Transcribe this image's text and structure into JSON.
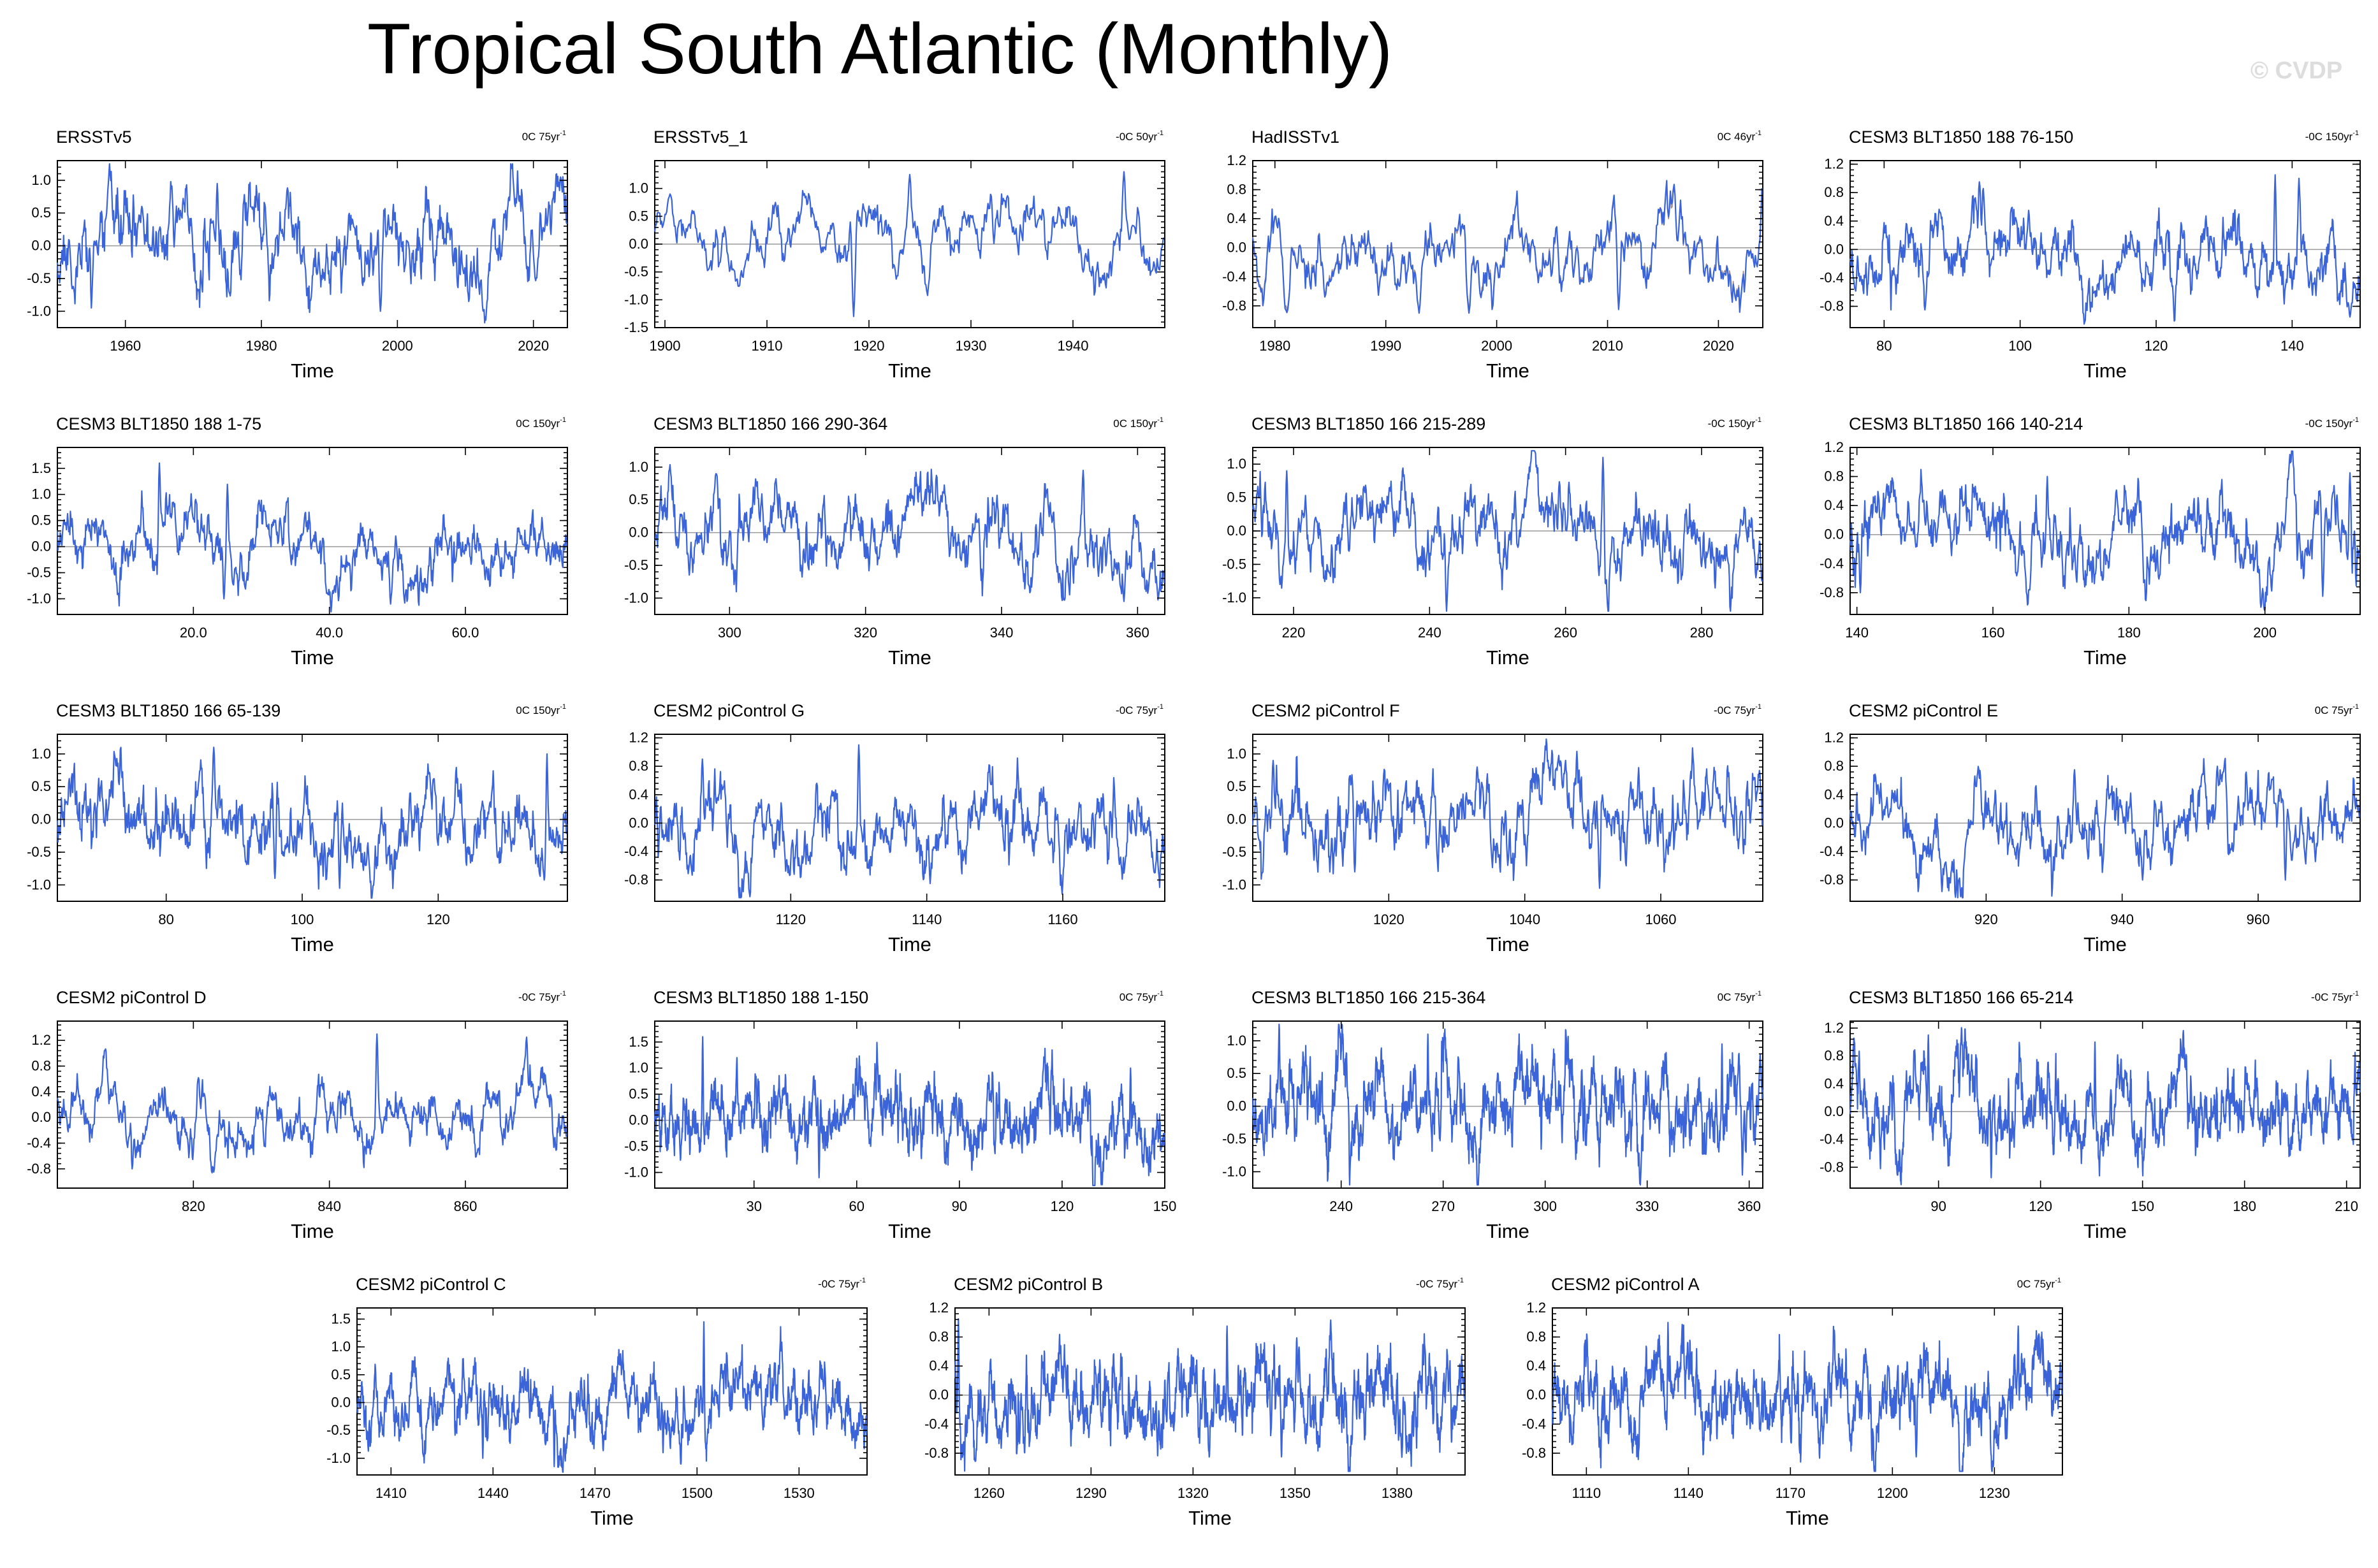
{
  "title": "Tropical South Atlantic (Monthly)",
  "watermark": "© CVDP",
  "chart_data": [
    {
      "type": "line",
      "name": "ERSSTv5",
      "trend": "0C 75yr",
      "trend_exp": "-1",
      "xlabel": "Time",
      "xlim": [
        1950,
        2025
      ],
      "xticks": [
        1960,
        1980,
        2000,
        2020
      ],
      "xtick_labels": [
        "1960",
        "1980",
        "2000",
        "2020"
      ],
      "ylim": [
        -1.25,
        1.3
      ],
      "yticks": [
        -1.0,
        -0.5,
        0.0,
        0.5,
        1.0
      ],
      "ytick_labels": [
        "-1.0",
        "-0.5",
        "0.0",
        "0.5",
        "1.0"
      ],
      "seed": 11,
      "amp": 0.45,
      "extremes": [
        [
          1973.5,
          0.95
        ],
        [
          1997.5,
          -1.0
        ],
        [
          2024,
          1.05
        ],
        [
          1955,
          -0.95
        ],
        [
          2010.5,
          -0.85
        ]
      ]
    },
    {
      "type": "line",
      "name": "ERSSTv5_1",
      "trend": "-0C 50yr",
      "trend_exp": "-1",
      "xlabel": "Time",
      "xlim": [
        1899,
        1949
      ],
      "xticks": [
        1900,
        1910,
        1920,
        1930,
        1940
      ],
      "xtick_labels": [
        "1900",
        "1910",
        "1920",
        "1930",
        "1940"
      ],
      "ylim": [
        -1.5,
        1.5
      ],
      "yticks": [
        -1.5,
        -1.0,
        -0.5,
        0.0,
        0.5,
        1.0
      ],
      "ytick_labels": [
        "-1.5",
        "-1.0",
        "-0.5",
        "0.0",
        "0.5",
        "1.0"
      ],
      "seed": 23,
      "amp": 0.42,
      "extremes": [
        [
          1918.5,
          -1.3
        ],
        [
          1924,
          1.25
        ],
        [
          1945,
          1.3
        ],
        [
          1900.5,
          0.9
        ]
      ]
    },
    {
      "type": "line",
      "name": "HadISSTv1",
      "trend": "0C 46yr",
      "trend_exp": "-1",
      "xlabel": "Time",
      "xlim": [
        1978,
        2024
      ],
      "xticks": [
        1980,
        1990,
        2000,
        2010,
        2020
      ],
      "xtick_labels": [
        "1980",
        "1990",
        "2000",
        "2010",
        "2020"
      ],
      "ylim": [
        -1.1,
        1.2
      ],
      "yticks": [
        -0.8,
        -0.4,
        0.0,
        0.4,
        0.8,
        1.2
      ],
      "ytick_labels": [
        "-0.8",
        "-0.4",
        "0.0",
        "0.4",
        "0.8",
        "1.2"
      ],
      "seed": 37,
      "amp": 0.34,
      "overlay": true,
      "extremes": [
        [
          1993,
          -0.9
        ],
        [
          1997.5,
          -0.9
        ],
        [
          2011,
          -0.85
        ],
        [
          2024,
          1.05
        ]
      ]
    },
    {
      "type": "line",
      "name": "CESM3 BLT1850 188 76-150",
      "trend": "-0C 150yr",
      "trend_exp": "-1",
      "xlabel": "Time",
      "xlim": [
        75,
        150
      ],
      "xticks": [
        80,
        100,
        120,
        140
      ],
      "xtick_labels": [
        "80",
        "100",
        "120",
        "140"
      ],
      "ylim": [
        -1.1,
        1.25
      ],
      "yticks": [
        -0.8,
        -0.4,
        0.0,
        0.4,
        0.8,
        1.2
      ],
      "ytick_labels": [
        "-0.8",
        "-0.4",
        "0.0",
        "0.4",
        "0.8",
        "1.2"
      ],
      "seed": 41,
      "amp": 0.36,
      "extremes": [
        [
          137.5,
          1.05
        ],
        [
          141,
          1.0
        ],
        [
          148.5,
          -0.95
        ],
        [
          86,
          -0.85
        ]
      ]
    },
    {
      "type": "line",
      "name": "CESM3 BLT1850 188 1-75",
      "trend": "0C 150yr",
      "trend_exp": "-1",
      "xlabel": "Time",
      "xlim": [
        0,
        75
      ],
      "xticks": [
        20,
        40,
        60
      ],
      "xtick_labels": [
        "20.0",
        "40.0",
        "60.0"
      ],
      "ylim": [
        -1.3,
        1.9
      ],
      "yticks": [
        -1.0,
        -0.5,
        0.0,
        0.5,
        1.0,
        1.5
      ],
      "ytick_labels": [
        "-1.0",
        "-0.5",
        "0.0",
        "0.5",
        "1.0",
        "1.5"
      ],
      "seed": 53,
      "amp": 0.42,
      "extremes": [
        [
          15,
          1.6
        ],
        [
          25,
          1.2
        ],
        [
          49,
          -1.1
        ],
        [
          24.5,
          -1.0
        ]
      ]
    },
    {
      "type": "line",
      "name": "CESM3 BLT1850 166 290-364",
      "trend": "0C 150yr",
      "trend_exp": "-1",
      "xlabel": "Time",
      "xlim": [
        289,
        364
      ],
      "xticks": [
        300,
        320,
        340,
        360
      ],
      "xtick_labels": [
        "300",
        "320",
        "340",
        "360"
      ],
      "ylim": [
        -1.25,
        1.3
      ],
      "yticks": [
        -1.0,
        -0.5,
        0.0,
        0.5,
        1.0
      ],
      "ytick_labels": [
        "-1.0",
        "-0.5",
        "0.0",
        "0.5",
        "1.0"
      ],
      "seed": 67,
      "amp": 0.42,
      "extremes": [
        [
          358,
          -1.05
        ],
        [
          350,
          -0.95
        ],
        [
          352,
          0.95
        ],
        [
          298,
          0.9
        ]
      ]
    },
    {
      "type": "line",
      "name": "CESM3 BLT1850 166 215-289",
      "trend": "-0C 150yr",
      "trend_exp": "-1",
      "xlabel": "Time",
      "xlim": [
        214,
        289
      ],
      "xticks": [
        220,
        240,
        260,
        280
      ],
      "xtick_labels": [
        "220",
        "240",
        "260",
        "280"
      ],
      "ylim": [
        -1.25,
        1.25
      ],
      "yticks": [
        -1.0,
        -0.5,
        0.0,
        0.5,
        1.0
      ],
      "ytick_labels": [
        "-1.0",
        "-0.5",
        "0.0",
        "0.5",
        "1.0"
      ],
      "seed": 79,
      "amp": 0.4,
      "extremes": [
        [
          265.5,
          1.1
        ],
        [
          242.5,
          -1.2
        ],
        [
          219,
          0.9
        ],
        [
          288,
          -0.7
        ]
      ]
    },
    {
      "type": "line",
      "name": "CESM3 BLT1850 166 140-214",
      "trend": "-0C 150yr",
      "trend_exp": "-1",
      "xlabel": "Time",
      "xlim": [
        139,
        214
      ],
      "xticks": [
        140,
        160,
        180,
        200
      ],
      "xtick_labels": [
        "140",
        "160",
        "180",
        "200"
      ],
      "ylim": [
        -1.1,
        1.2
      ],
      "yticks": [
        -0.8,
        -0.4,
        0.0,
        0.4,
        0.8,
        1.2
      ],
      "ytick_labels": [
        "-0.8",
        "-0.4",
        "0.0",
        "0.4",
        "0.8",
        "1.2"
      ],
      "seed": 83,
      "amp": 0.38,
      "extremes": [
        [
          212.5,
          0.85
        ],
        [
          140.5,
          -0.8
        ],
        [
          168,
          0.8
        ],
        [
          208.5,
          -0.85
        ]
      ]
    },
    {
      "type": "line",
      "name": "CESM3 BLT1850 166 65-139",
      "trend": "0C 150yr",
      "trend_exp": "-1",
      "xlabel": "Time",
      "xlim": [
        64,
        139
      ],
      "xticks": [
        80,
        100,
        120
      ],
      "xtick_labels": [
        "80",
        "100",
        "120"
      ],
      "ylim": [
        -1.25,
        1.3
      ],
      "yticks": [
        -1.0,
        -0.5,
        0.0,
        0.5,
        1.0
      ],
      "ytick_labels": [
        "-1.0",
        "-0.5",
        "0.0",
        "0.5",
        "1.0"
      ],
      "seed": 97,
      "amp": 0.4,
      "extremes": [
        [
          87,
          1.1
        ],
        [
          105.5,
          -1.05
        ],
        [
          136,
          1.0
        ],
        [
          96,
          -0.9
        ]
      ]
    },
    {
      "type": "line",
      "name": "CESM2 piControl G",
      "trend": "-0C 75yr",
      "trend_exp": "-1",
      "xlabel": "Time",
      "xlim": [
        1100,
        1175
      ],
      "xticks": [
        1120,
        1140,
        1160
      ],
      "xtick_labels": [
        "1120",
        "1140",
        "1160"
      ],
      "ylim": [
        -1.1,
        1.25
      ],
      "yticks": [
        -0.8,
        -0.4,
        0.0,
        0.4,
        0.8,
        1.2
      ],
      "ytick_labels": [
        "-0.8",
        "-0.4",
        "0.0",
        "0.4",
        "0.8",
        "1.2"
      ],
      "seed": 101,
      "amp": 0.36,
      "extremes": [
        [
          1130,
          1.1
        ],
        [
          1140.5,
          -0.85
        ],
        [
          1107,
          0.9
        ],
        [
          1173.5,
          -0.7
        ]
      ]
    },
    {
      "type": "line",
      "name": "CESM2 piControl F",
      "trend": "-0C 75yr",
      "trend_exp": "-1",
      "xlabel": "Time",
      "xlim": [
        1000,
        1075
      ],
      "xticks": [
        1020,
        1040,
        1060
      ],
      "xtick_labels": [
        "1020",
        "1040",
        "1060"
      ],
      "ylim": [
        -1.25,
        1.3
      ],
      "yticks": [
        -1.0,
        -0.5,
        0.0,
        0.5,
        1.0
      ],
      "ytick_labels": [
        "-1.0",
        "-0.5",
        "0.0",
        "0.5",
        "1.0"
      ],
      "seed": 113,
      "amp": 0.4,
      "extremes": [
        [
          1051,
          -1.05
        ],
        [
          1003,
          0.9
        ],
        [
          1033,
          0.8
        ],
        [
          1015,
          -0.8
        ]
      ]
    },
    {
      "type": "line",
      "name": "CESM2 piControl E",
      "trend": "0C 75yr",
      "trend_exp": "-1",
      "xlabel": "Time",
      "xlim": [
        900,
        975
      ],
      "xticks": [
        920,
        940,
        960
      ],
      "xtick_labels": [
        "920",
        "940",
        "960"
      ],
      "ylim": [
        -1.1,
        1.25
      ],
      "yticks": [
        -0.8,
        -0.4,
        0.0,
        0.4,
        0.8,
        1.2
      ],
      "ytick_labels": [
        "-0.8",
        "-0.4",
        "0.0",
        "0.4",
        "0.8",
        "1.2"
      ],
      "seed": 127,
      "amp": 0.36,
      "extremes": [
        [
          943,
          -0.8
        ],
        [
          964,
          -0.8
        ],
        [
          933,
          0.75
        ],
        [
          954,
          0.8
        ]
      ]
    },
    {
      "type": "line",
      "name": "CESM2 piControl D",
      "trend": "-0C 75yr",
      "trend_exp": "-1",
      "xlabel": "Time",
      "xlim": [
        800,
        875
      ],
      "xticks": [
        820,
        840,
        860
      ],
      "xtick_labels": [
        "820",
        "840",
        "860"
      ],
      "ylim": [
        -1.1,
        1.5
      ],
      "yticks": [
        -0.8,
        -0.4,
        0.0,
        0.4,
        0.8,
        1.2
      ],
      "ytick_labels": [
        "-0.8",
        "-0.4",
        "0.0",
        "0.4",
        "0.8",
        "1.2"
      ],
      "seed": 131,
      "amp": 0.32,
      "extremes": [
        [
          847,
          1.3
        ],
        [
          869,
          1.25
        ],
        [
          811,
          -0.8
        ],
        [
          823,
          -0.85
        ]
      ]
    },
    {
      "type": "line",
      "name": "CESM3 BLT1850 188 1-150",
      "trend": "0C 75yr",
      "trend_exp": "-1",
      "xlabel": "Time",
      "xlim": [
        1,
        150
      ],
      "xticks": [
        30,
        60,
        90,
        120,
        150
      ],
      "xtick_labels": [
        "30",
        "60",
        "90",
        "120",
        "150"
      ],
      "ylim": [
        -1.3,
        1.9
      ],
      "yticks": [
        -1.0,
        -0.5,
        0.0,
        0.5,
        1.0,
        1.5
      ],
      "ytick_labels": [
        "-1.0",
        "-0.5",
        "0.0",
        "0.5",
        "1.0",
        "1.5"
      ],
      "seed": 139,
      "amp": 0.42,
      "extremes": [
        [
          15,
          1.6
        ],
        [
          25,
          1.2
        ],
        [
          49,
          -1.1
        ],
        [
          140,
          1.0
        ]
      ]
    },
    {
      "type": "line",
      "name": "CESM3 BLT1850 166 215-364",
      "trend": "0C 75yr",
      "trend_exp": "-1",
      "xlabel": "Time",
      "xlim": [
        214,
        364
      ],
      "xticks": [
        240,
        270,
        300,
        330,
        360
      ],
      "xtick_labels": [
        "240",
        "270",
        "300",
        "330",
        "360"
      ],
      "ylim": [
        -1.25,
        1.3
      ],
      "yticks": [
        -1.0,
        -0.5,
        0.0,
        0.5,
        1.0
      ],
      "ytick_labels": [
        "-1.0",
        "-0.5",
        "0.0",
        "0.5",
        "1.0"
      ],
      "seed": 149,
      "amp": 0.42,
      "extremes": [
        [
          265.5,
          1.1
        ],
        [
          242.5,
          -1.2
        ],
        [
          358,
          -1.05
        ],
        [
          352,
          0.95
        ]
      ]
    },
    {
      "type": "line",
      "name": "CESM3 BLT1850 166 65-214",
      "trend": "-0C 75yr",
      "trend_exp": "-1",
      "xlabel": "Time",
      "xlim": [
        64,
        214
      ],
      "xticks": [
        90,
        120,
        150,
        180,
        210
      ],
      "xtick_labels": [
        "90",
        "120",
        "150",
        "180",
        "210"
      ],
      "ylim": [
        -1.1,
        1.3
      ],
      "yticks": [
        -0.8,
        -0.4,
        0.0,
        0.4,
        0.8,
        1.2
      ],
      "ytick_labels": [
        "-0.8",
        "-0.4",
        "0.0",
        "0.4",
        "0.8",
        "1.2"
      ],
      "seed": 151,
      "amp": 0.38,
      "extremes": [
        [
          87,
          1.1
        ],
        [
          105.5,
          -0.95
        ],
        [
          212.5,
          0.85
        ],
        [
          136,
          1.0
        ]
      ]
    },
    {
      "type": "line",
      "name": "CESM2 piControl C",
      "trend": "-0C 75yr",
      "trend_exp": "-1",
      "xlabel": "Time",
      "xlim": [
        1400,
        1550
      ],
      "xticks": [
        1410,
        1440,
        1470,
        1500,
        1530
      ],
      "xtick_labels": [
        "1410",
        "1440",
        "1470",
        "1500",
        "1530"
      ],
      "ylim": [
        -1.3,
        1.7
      ],
      "yticks": [
        -1.0,
        -0.5,
        0.0,
        0.5,
        1.0,
        1.5
      ],
      "ytick_labels": [
        "-1.0",
        "-0.5",
        "0.0",
        "0.5",
        "1.0",
        "1.5"
      ],
      "seed": 163,
      "amp": 0.4,
      "extremes": [
        [
          1502,
          1.45
        ],
        [
          1458,
          -1.15
        ],
        [
          1437,
          -1.0
        ],
        [
          1490,
          -0.9
        ]
      ]
    },
    {
      "type": "line",
      "name": "CESM2 piControl B",
      "trend": "-0C 75yr",
      "trend_exp": "-1",
      "xlabel": "Time",
      "xlim": [
        1250,
        1400
      ],
      "xticks": [
        1260,
        1290,
        1320,
        1350,
        1380
      ],
      "xtick_labels": [
        "1260",
        "1290",
        "1320",
        "1350",
        "1380"
      ],
      "ylim": [
        -1.1,
        1.2
      ],
      "yticks": [
        -0.8,
        -0.4,
        0.0,
        0.4,
        0.8,
        1.2
      ],
      "ytick_labels": [
        "-0.8",
        "-0.4",
        "0.0",
        "0.4",
        "0.8",
        "1.2"
      ],
      "seed": 173,
      "amp": 0.36,
      "extremes": [
        [
          1251,
          1.05
        ],
        [
          1330,
          0.95
        ],
        [
          1256,
          -0.9
        ],
        [
          1346,
          -0.85
        ]
      ]
    },
    {
      "type": "line",
      "name": "CESM2 piControl A",
      "trend": "0C 75yr",
      "trend_exp": "-1",
      "xlabel": "Time",
      "xlim": [
        1100,
        1250
      ],
      "xticks": [
        1110,
        1140,
        1170,
        1200,
        1230
      ],
      "xtick_labels": [
        "1110",
        "1140",
        "1170",
        "1200",
        "1230"
      ],
      "ylim": [
        -1.1,
        1.2
      ],
      "yticks": [
        -0.8,
        -0.4,
        0.0,
        0.4,
        0.8,
        1.2
      ],
      "ytick_labels": [
        "-0.8",
        "-0.4",
        "0.0",
        "0.4",
        "0.8",
        "1.2"
      ],
      "seed": 181,
      "amp": 0.36,
      "extremes": [
        [
          1134,
          1.0
        ],
        [
          1237,
          0.95
        ],
        [
          1194,
          -0.9
        ],
        [
          1207,
          -0.85
        ]
      ]
    }
  ]
}
